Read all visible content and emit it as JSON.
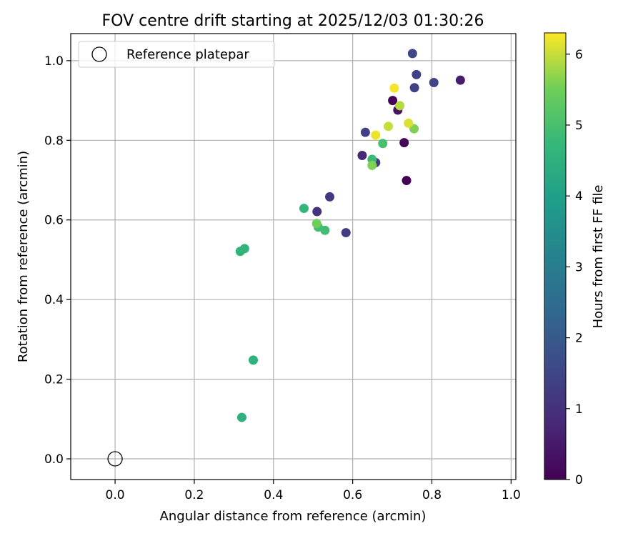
{
  "chart_data": {
    "type": "scatter",
    "title": "FOV centre drift starting at 2025/12/03 01:30:26",
    "xlabel": "Angular distance from reference (arcmin)",
    "ylabel": "Rotation from reference (arcmin)",
    "xlim": [
      -0.112,
      1.012
    ],
    "ylim": [
      -0.052,
      1.068
    ],
    "xticks": [
      0.0,
      0.2,
      0.4,
      0.6,
      0.8,
      1.0
    ],
    "xtick_labels": [
      "0.0",
      "0.2",
      "0.4",
      "0.6",
      "0.8",
      "1.0"
    ],
    "yticks": [
      0.0,
      0.2,
      0.4,
      0.6,
      0.8,
      1.0
    ],
    "ytick_labels": [
      "0.0",
      "0.2",
      "0.4",
      "0.6",
      "0.8",
      "1.0"
    ],
    "grid": true,
    "legend": {
      "placement": "upper-left",
      "entries": [
        "Reference platepar"
      ]
    },
    "reference_point": {
      "x": 0.0,
      "y": 0.0,
      "label": "Reference platepar"
    },
    "colorbar": {
      "label": "Hours from first FF file",
      "colormap": "viridis",
      "range": [
        0,
        6.3
      ],
      "ticks": [
        0,
        1,
        2,
        3,
        4,
        5,
        6
      ],
      "tick_labels": [
        "0",
        "1",
        "2",
        "3",
        "4",
        "5",
        "6"
      ]
    },
    "points": [
      {
        "x": 0.736,
        "y": 0.699,
        "hours": 0.0
      },
      {
        "x": 0.701,
        "y": 0.9,
        "hours": 0.05
      },
      {
        "x": 0.73,
        "y": 0.794,
        "hours": 0.1
      },
      {
        "x": 0.714,
        "y": 0.876,
        "hours": 0.4
      },
      {
        "x": 0.872,
        "y": 0.951,
        "hours": 0.55
      },
      {
        "x": 0.624,
        "y": 0.762,
        "hours": 0.8
      },
      {
        "x": 0.51,
        "y": 0.621,
        "hours": 1.0
      },
      {
        "x": 0.542,
        "y": 0.658,
        "hours": 1.2
      },
      {
        "x": 0.658,
        "y": 0.744,
        "hours": 1.25
      },
      {
        "x": 0.583,
        "y": 0.568,
        "hours": 1.3
      },
      {
        "x": 0.632,
        "y": 0.82,
        "hours": 1.35
      },
      {
        "x": 0.756,
        "y": 0.932,
        "hours": 1.4
      },
      {
        "x": 0.805,
        "y": 0.945,
        "hours": 1.45
      },
      {
        "x": 0.761,
        "y": 0.965,
        "hours": 1.4
      },
      {
        "x": 0.751,
        "y": 1.018,
        "hours": 1.55
      },
      {
        "x": 0.32,
        "y": 0.104,
        "hours": 4.5
      },
      {
        "x": 0.349,
        "y": 0.248,
        "hours": 4.5
      },
      {
        "x": 0.316,
        "y": 0.521,
        "hours": 4.6
      },
      {
        "x": 0.327,
        "y": 0.528,
        "hours": 4.6
      },
      {
        "x": 0.477,
        "y": 0.629,
        "hours": 4.7
      },
      {
        "x": 0.513,
        "y": 0.582,
        "hours": 4.9
      },
      {
        "x": 0.53,
        "y": 0.574,
        "hours": 4.9
      },
      {
        "x": 0.649,
        "y": 0.752,
        "hours": 4.8
      },
      {
        "x": 0.676,
        "y": 0.792,
        "hours": 5.0
      },
      {
        "x": 0.509,
        "y": 0.591,
        "hours": 5.5
      },
      {
        "x": 0.649,
        "y": 0.737,
        "hours": 5.6
      },
      {
        "x": 0.755,
        "y": 0.829,
        "hours": 5.6
      },
      {
        "x": 0.719,
        "y": 0.887,
        "hours": 5.9
      },
      {
        "x": 0.69,
        "y": 0.835,
        "hours": 6.0
      },
      {
        "x": 0.741,
        "y": 0.843,
        "hours": 6.1
      },
      {
        "x": 0.658,
        "y": 0.813,
        "hours": 6.2
      },
      {
        "x": 0.705,
        "y": 0.931,
        "hours": 6.25
      }
    ]
  }
}
